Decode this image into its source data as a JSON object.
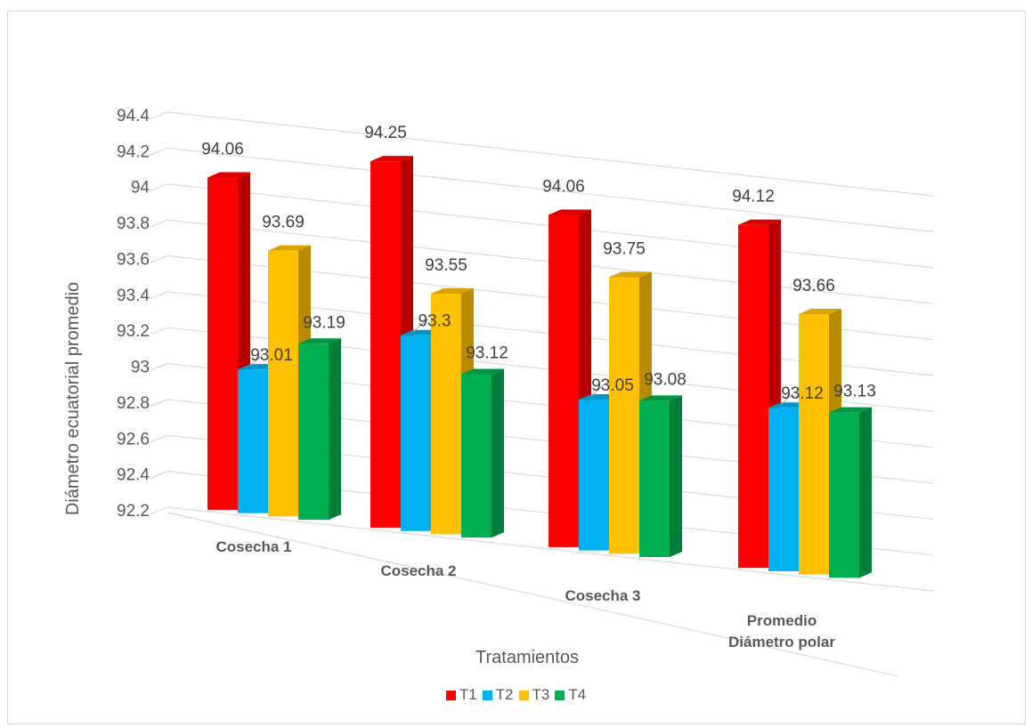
{
  "chart_data": {
    "type": "bar",
    "categories": [
      "Cosecha 1",
      "Cosecha 2",
      "Cosecha 3",
      "Promedio Diámetro polar"
    ],
    "category_lines": [
      [
        "Cosecha 1"
      ],
      [
        "Cosecha 2"
      ],
      [
        "Cosecha 3"
      ],
      [
        "Promedio",
        "Diámetro polar"
      ]
    ],
    "series": [
      {
        "name": "T1",
        "values": [
          94.06,
          94.25,
          94.06,
          94.12
        ],
        "labels": [
          "94.06",
          "94.25",
          "94.06",
          "94.12"
        ],
        "color": "#ff0000"
      },
      {
        "name": "T2",
        "values": [
          93.01,
          93.3,
          93.05,
          93.12
        ],
        "labels": [
          "93.01",
          "93.3",
          "93.05",
          "93.12"
        ],
        "color": "#00b0f0"
      },
      {
        "name": "T3",
        "values": [
          93.69,
          93.55,
          93.75,
          93.66
        ],
        "labels": [
          "93.69",
          "93.55",
          "93.75",
          "93.66"
        ],
        "color": "#ffc000"
      },
      {
        "name": "T4",
        "values": [
          93.19,
          93.12,
          93.08,
          93.13
        ],
        "labels": [
          "93.19",
          "93.12",
          "93.08",
          "93.13"
        ],
        "color": "#00b050"
      }
    ],
    "yticks": [
      "92.2",
      "92.4",
      "92.6",
      "92.8",
      "93",
      "93.2",
      "93.4",
      "93.6",
      "93.8",
      "94",
      "94.2",
      "94.4"
    ],
    "ylim": [
      92.2,
      94.4
    ],
    "xlabel": "Tratamientos",
    "ylabel": "Diámetro ecuatorial promedio",
    "grid": true,
    "legend_position": "bottom",
    "style": "3d-clustered-column"
  }
}
